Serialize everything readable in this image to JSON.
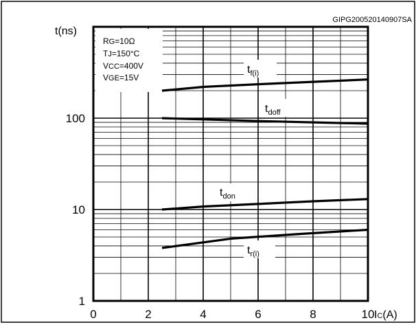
{
  "figure_id": "GIPG200520140907SA",
  "conditions": [
    {
      "main": "R",
      "sub": "G",
      "rest": "=10Ω"
    },
    {
      "main": "T",
      "sub": "J",
      "rest": "=150°C"
    },
    {
      "main": "V",
      "sub": "CC",
      "rest": "=400V"
    },
    {
      "main": "V",
      "sub": "GE",
      "rest": "=15V"
    }
  ],
  "chart_data": {
    "type": "line",
    "y_scale": "log",
    "xlim": [
      0,
      10
    ],
    "ylim": [
      1,
      1000
    ],
    "grid": true,
    "xlabel": {
      "main": "I",
      "sub": "C",
      "rest": "(A)"
    },
    "ylabel": "t(ns)",
    "xticks": [
      "0",
      "2",
      "4",
      "6",
      "8",
      "10"
    ],
    "yticks": [
      "1",
      "10",
      "100"
    ],
    "ytick_values": [
      1,
      10,
      100
    ],
    "series": [
      {
        "name": "t_f(i)",
        "label_main": "t",
        "label_sub": "f(i)",
        "x": [
          2.5,
          4,
          6,
          8,
          10
        ],
        "y": [
          200,
          220,
          235,
          250,
          265
        ]
      },
      {
        "name": "t_doff",
        "label_main": "t",
        "label_sub": "doff",
        "x": [
          2.5,
          4,
          6,
          8,
          10
        ],
        "y": [
          100,
          97,
          93,
          90,
          87
        ]
      },
      {
        "name": "t_don",
        "label_main": "t",
        "label_sub": "don",
        "x": [
          2.5,
          4,
          6,
          8,
          10
        ],
        "y": [
          10,
          10.8,
          11.5,
          12.3,
          13
        ]
      },
      {
        "name": "t_r(i)",
        "label_main": "t",
        "label_sub": "r(i)",
        "x": [
          2.5,
          5,
          7.5,
          10
        ],
        "y": [
          3.8,
          4.8,
          5.4,
          6
        ]
      }
    ]
  }
}
